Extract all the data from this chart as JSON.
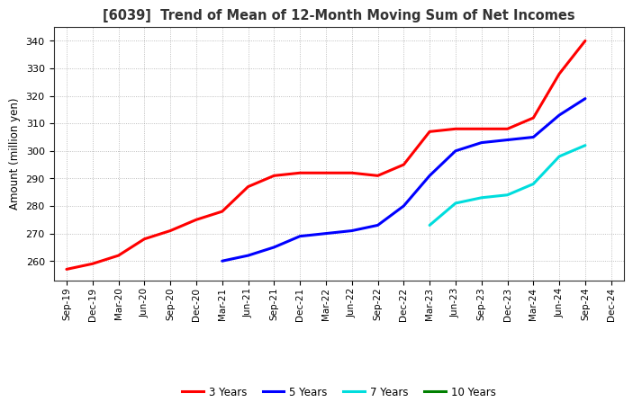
{
  "title": "[6039]  Trend of Mean of 12-Month Moving Sum of Net Incomes",
  "ylabel": "Amount (million yen)",
  "background_color": "#ffffff",
  "plot_bg_color": "#ffffff",
  "grid_color": "#999999",
  "ylim": [
    253,
    345
  ],
  "yticks": [
    260,
    270,
    280,
    290,
    300,
    310,
    320,
    330,
    340
  ],
  "x_labels": [
    "Sep-19",
    "Dec-19",
    "Mar-20",
    "Jun-20",
    "Sep-20",
    "Dec-20",
    "Mar-21",
    "Jun-21",
    "Sep-21",
    "Dec-21",
    "Mar-22",
    "Jun-22",
    "Sep-22",
    "Dec-22",
    "Mar-23",
    "Jun-23",
    "Sep-23",
    "Dec-23",
    "Mar-24",
    "Jun-24",
    "Sep-24",
    "Dec-24"
  ],
  "series": {
    "3 Years": {
      "color": "#ff0000",
      "data_x": [
        0,
        1,
        2,
        3,
        4,
        5,
        6,
        7,
        8,
        9,
        10,
        11,
        12,
        13,
        14,
        15,
        16,
        17,
        18,
        19,
        20
      ],
      "data_y": [
        257,
        259,
        262,
        268,
        271,
        275,
        278,
        287,
        291,
        292,
        292,
        292,
        291,
        295,
        307,
        308,
        308,
        308,
        312,
        328,
        340
      ]
    },
    "5 Years": {
      "color": "#0000ff",
      "data_x": [
        6,
        7,
        8,
        9,
        10,
        11,
        12,
        13,
        14,
        15,
        16,
        17,
        18,
        19,
        20
      ],
      "data_y": [
        260,
        262,
        265,
        269,
        270,
        271,
        273,
        280,
        291,
        300,
        303,
        304,
        305,
        313,
        319
      ]
    },
    "7 Years": {
      "color": "#00dddd",
      "data_x": [
        14,
        15,
        16,
        17,
        18,
        19,
        20
      ],
      "data_y": [
        273,
        281,
        283,
        284,
        288,
        298,
        302
      ]
    },
    "10 Years": {
      "color": "#008000",
      "data_x": [],
      "data_y": []
    }
  },
  "legend_labels": [
    "3 Years",
    "5 Years",
    "7 Years",
    "10 Years"
  ],
  "legend_colors": [
    "#ff0000",
    "#0000ff",
    "#00dddd",
    "#008000"
  ],
  "title_fontsize": 10.5,
  "ylabel_fontsize": 8.5,
  "tick_fontsize": 8,
  "xtick_fontsize": 7.5,
  "linewidth": 2.2
}
